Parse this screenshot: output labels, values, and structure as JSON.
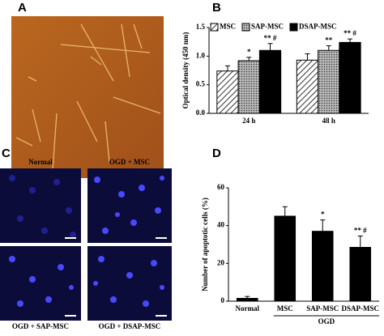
{
  "panels": {
    "labels": [
      "A",
      "B",
      "C",
      "D"
    ]
  },
  "images": {
    "captions": [
      "Normal",
      "OGD + MSC",
      "OGD + SAP-MSC",
      "OGD + DSAP-MSC"
    ]
  },
  "chart_data": [
    {
      "type": "bar",
      "ylabel": "Optical density (450 nm)",
      "categories": [
        "24 h",
        "48 h"
      ],
      "series": [
        {
          "name": "MSC",
          "color": "#ffffff",
          "pattern": "hatch",
          "values": [
            0.74,
            0.93
          ],
          "errors": [
            0.09,
            0.11
          ]
        },
        {
          "name": "SAP-MSC",
          "color": "#8a8a8a",
          "pattern": "dots",
          "values": [
            0.92,
            1.1
          ],
          "errors": [
            0.06,
            0.08
          ],
          "marks": [
            "*",
            "**"
          ]
        },
        {
          "name": "DSAP-MSC",
          "color": "#000000",
          "pattern": "solid",
          "values": [
            1.1,
            1.24
          ],
          "errors": [
            0.12,
            0.06
          ],
          "marks": [
            "** #",
            "** #"
          ]
        }
      ],
      "ylim": [
        0,
        1.5
      ],
      "yticks": [
        {
          "value": 0,
          "label": "0.0"
        },
        0.5,
        {
          "value": 1,
          "label": "1.0"
        },
        1.5
      ]
    },
    {
      "type": "bar",
      "ylabel": "Number of apoptotic cells (%)",
      "xlabel": "OGD",
      "categories": [
        "Normal",
        "MSC",
        "SAP-MSC",
        "DSAP-MSC"
      ],
      "values": [
        1.5,
        45,
        37,
        28.5
      ],
      "errors": [
        1,
        5,
        6,
        6
      ],
      "marks": [
        null,
        null,
        "*",
        "** #"
      ],
      "color": "#000000",
      "ylim": [
        0,
        60
      ],
      "yticks": [
        0,
        20,
        40,
        60
      ]
    }
  ]
}
